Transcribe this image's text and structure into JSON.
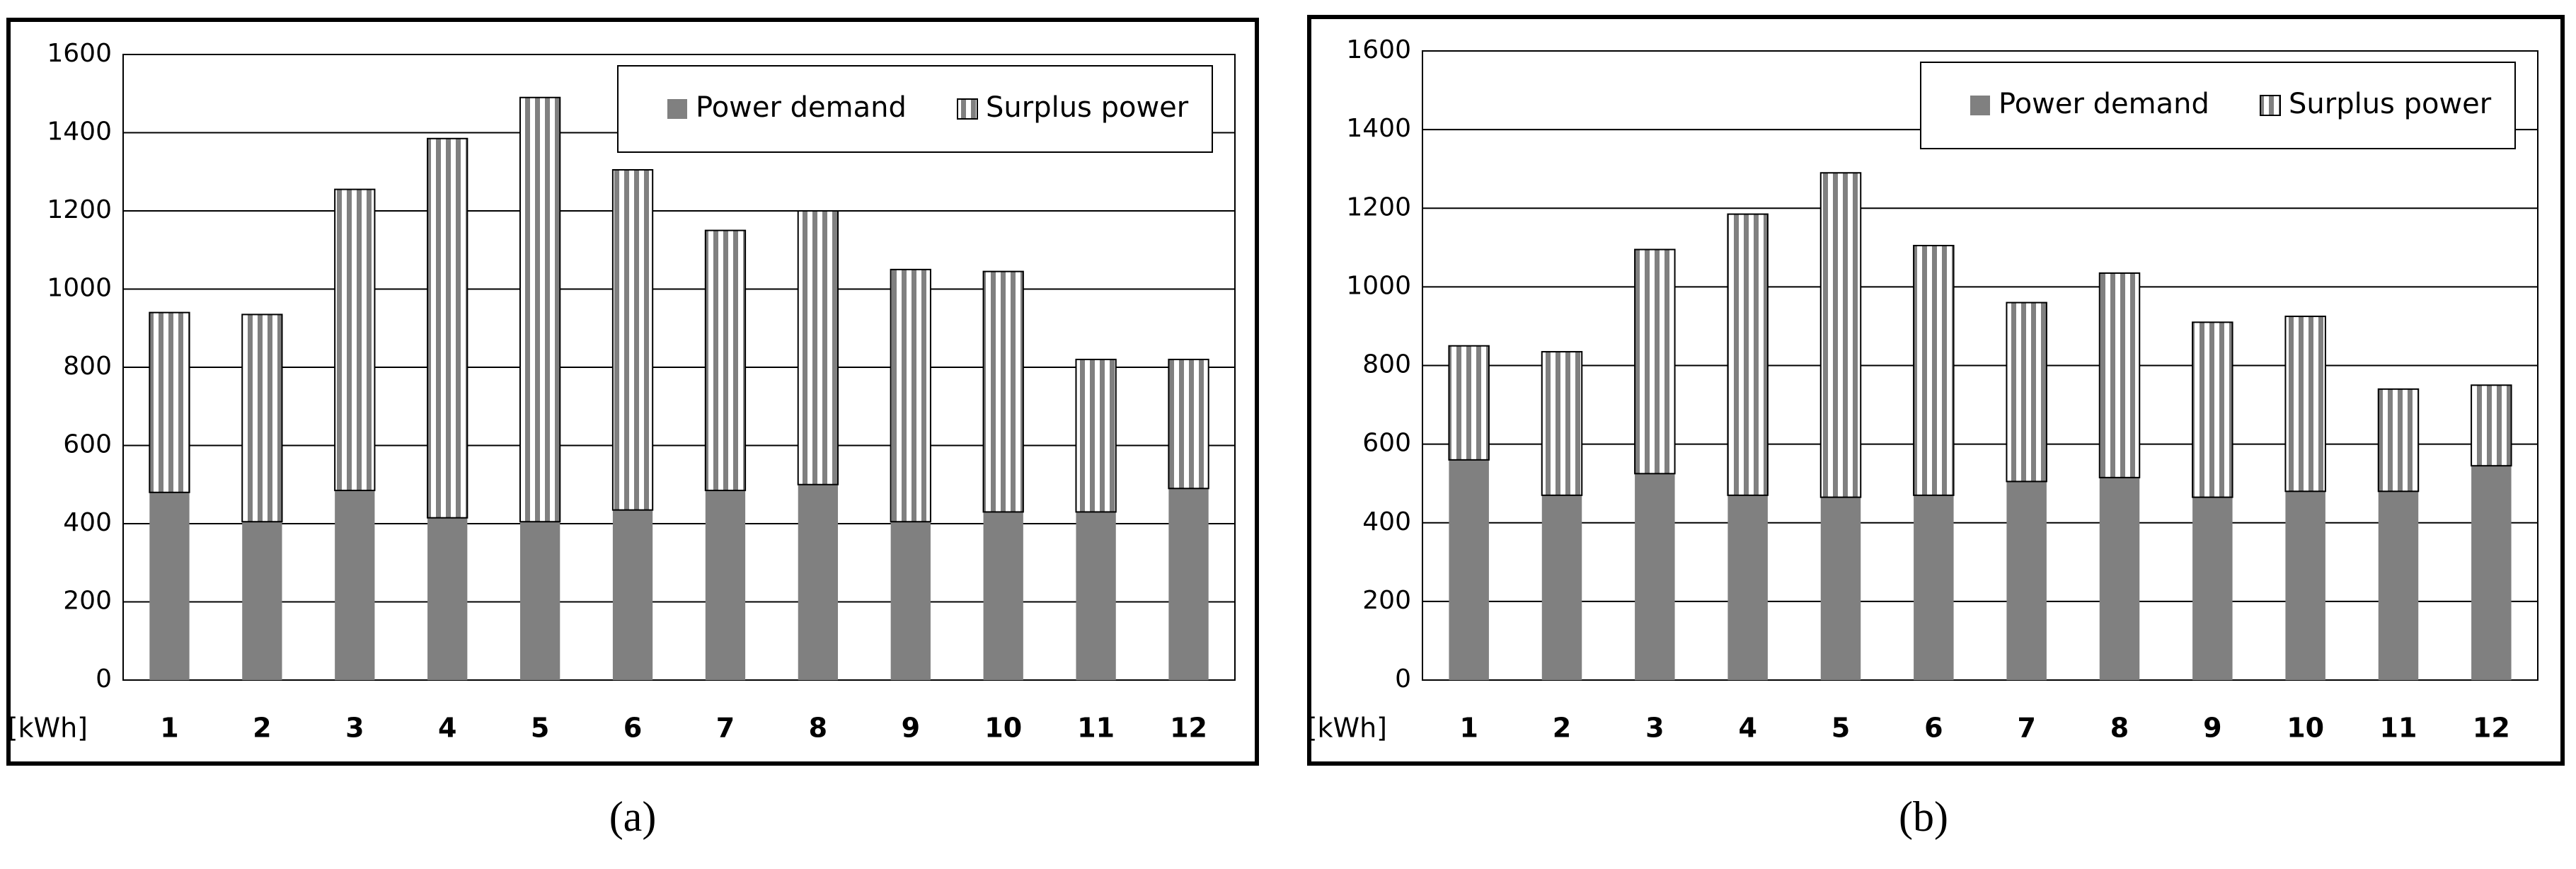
{
  "chart_data": [
    {
      "type": "stacked_bar",
      "caption": "(a)",
      "unit_label": "[kWh]",
      "categories": [
        "1",
        "2",
        "3",
        "4",
        "5",
        "6",
        "7",
        "8",
        "9",
        "10",
        "11",
        "12"
      ],
      "series": [
        {
          "name": "Power demand",
          "color": "#808080",
          "pattern": "solid",
          "values": [
            480,
            405,
            485,
            415,
            405,
            435,
            485,
            500,
            405,
            430,
            430,
            490
          ]
        },
        {
          "name": "Surplus power",
          "color": "#808080",
          "pattern": "stripes",
          "values": [
            460,
            530,
            770,
            970,
            1085,
            870,
            665,
            700,
            645,
            615,
            390,
            330
          ]
        }
      ],
      "ylim": [
        0,
        1600
      ],
      "yticks": [
        0,
        200,
        400,
        600,
        800,
        1000,
        1200,
        1400,
        1600
      ],
      "grid": true,
      "legend": "top-right"
    },
    {
      "type": "stacked_bar",
      "caption": "(b)",
      "unit_label": "[kWh]",
      "categories": [
        "1",
        "2",
        "3",
        "4",
        "5",
        "6",
        "7",
        "8",
        "9",
        "10",
        "11",
        "12"
      ],
      "series": [
        {
          "name": "Power demand",
          "color": "#808080",
          "pattern": "solid",
          "values": [
            560,
            470,
            525,
            470,
            465,
            470,
            505,
            515,
            465,
            480,
            480,
            545
          ]
        },
        {
          "name": "Surplus power",
          "color": "#808080",
          "pattern": "stripes",
          "values": [
            290,
            365,
            570,
            715,
            825,
            635,
            455,
            520,
            445,
            445,
            260,
            205
          ]
        }
      ],
      "ylim": [
        0,
        1600
      ],
      "yticks": [
        0,
        200,
        400,
        600,
        800,
        1000,
        1200,
        1400,
        1600
      ],
      "grid": true,
      "legend": "top-right"
    }
  ]
}
